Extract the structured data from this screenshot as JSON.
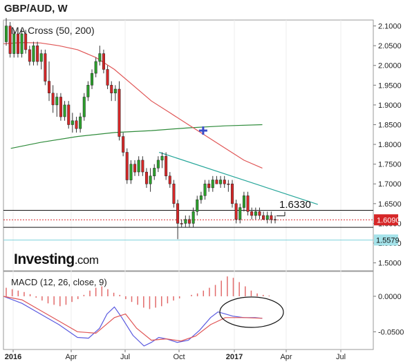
{
  "header": {
    "title": "GBP/AUD, W",
    "ma_label": "MA Cross (50, 200)",
    "macd_label": "MACD (12, 26, close, 9)",
    "logo_main": "Investing",
    "logo_suffix": ".com"
  },
  "chart_data": [
    {
      "type": "candlestick",
      "title": "GBP/AUD, W",
      "x_ticks": [
        "2016",
        "Apr",
        "Jul",
        "Oct",
        "2017",
        "Apr",
        "Jul"
      ],
      "y_ticks": [
        "2.1000",
        "2.0500",
        "2.0000",
        "1.9500",
        "1.9000",
        "1.8500",
        "1.8000",
        "1.7500",
        "1.7000",
        "1.6500",
        "1.6000",
        "1.5500",
        "1.5000"
      ],
      "ylim": [
        1.48,
        2.115
      ],
      "current_price": "1.6090",
      "support_level": "1.5579",
      "annotation": "1.6330",
      "horizontal_lines": [
        1.633,
        1.59,
        1.5579
      ],
      "candles": [
        {
          "o": 2.06,
          "h": 2.12,
          "l": 2.05,
          "c": 2.1,
          "bull": true
        },
        {
          "o": 2.1,
          "h": 2.11,
          "l": 2.02,
          "c": 2.03,
          "bull": false
        },
        {
          "o": 2.03,
          "h": 2.09,
          "l": 2.02,
          "c": 2.08,
          "bull": true
        },
        {
          "o": 2.08,
          "h": 2.09,
          "l": 2.02,
          "c": 2.03,
          "bull": false
        },
        {
          "o": 2.03,
          "h": 2.09,
          "l": 2.02,
          "c": 2.08,
          "bull": true
        },
        {
          "o": 2.08,
          "h": 2.09,
          "l": 2.03,
          "c": 2.04,
          "bull": false
        },
        {
          "o": 2.04,
          "h": 2.05,
          "l": 2.0,
          "c": 2.01,
          "bull": false
        },
        {
          "o": 2.01,
          "h": 2.06,
          "l": 2.0,
          "c": 2.05,
          "bull": true
        },
        {
          "o": 2.05,
          "h": 2.06,
          "l": 2.0,
          "c": 2.01,
          "bull": false
        },
        {
          "o": 2.01,
          "h": 2.04,
          "l": 1.99,
          "c": 2.03,
          "bull": true
        },
        {
          "o": 2.03,
          "h": 2.04,
          "l": 1.95,
          "c": 1.96,
          "bull": false
        },
        {
          "o": 1.96,
          "h": 2.01,
          "l": 1.91,
          "c": 1.93,
          "bull": false
        },
        {
          "o": 1.93,
          "h": 1.95,
          "l": 1.88,
          "c": 1.9,
          "bull": false
        },
        {
          "o": 1.9,
          "h": 1.93,
          "l": 1.87,
          "c": 1.92,
          "bull": true
        },
        {
          "o": 1.92,
          "h": 1.93,
          "l": 1.86,
          "c": 1.87,
          "bull": false
        },
        {
          "o": 1.87,
          "h": 1.91,
          "l": 1.86,
          "c": 1.9,
          "bull": true
        },
        {
          "o": 1.9,
          "h": 1.91,
          "l": 1.84,
          "c": 1.85,
          "bull": false
        },
        {
          "o": 1.85,
          "h": 1.88,
          "l": 1.83,
          "c": 1.86,
          "bull": true
        },
        {
          "o": 1.86,
          "h": 1.87,
          "l": 1.83,
          "c": 1.84,
          "bull": false
        },
        {
          "o": 1.84,
          "h": 1.88,
          "l": 1.83,
          "c": 1.87,
          "bull": true
        },
        {
          "o": 1.87,
          "h": 1.93,
          "l": 1.86,
          "c": 1.92,
          "bull": true
        },
        {
          "o": 1.92,
          "h": 1.96,
          "l": 1.91,
          "c": 1.95,
          "bull": true
        },
        {
          "o": 1.95,
          "h": 1.99,
          "l": 1.94,
          "c": 1.98,
          "bull": true
        },
        {
          "o": 1.98,
          "h": 2.02,
          "l": 1.97,
          "c": 2.01,
          "bull": true
        },
        {
          "o": 2.01,
          "h": 2.05,
          "l": 2.0,
          "c": 2.03,
          "bull": true
        },
        {
          "o": 2.03,
          "h": 2.04,
          "l": 1.98,
          "c": 1.99,
          "bull": false
        },
        {
          "o": 1.99,
          "h": 2.0,
          "l": 1.94,
          "c": 1.95,
          "bull": false
        },
        {
          "o": 1.95,
          "h": 1.96,
          "l": 1.91,
          "c": 1.93,
          "bull": false
        },
        {
          "o": 1.93,
          "h": 1.95,
          "l": 1.91,
          "c": 1.94,
          "bull": true
        },
        {
          "o": 1.94,
          "h": 1.96,
          "l": 1.81,
          "c": 1.82,
          "bull": false
        },
        {
          "o": 1.82,
          "h": 1.83,
          "l": 1.77,
          "c": 1.78,
          "bull": false
        },
        {
          "o": 1.78,
          "h": 1.79,
          "l": 1.7,
          "c": 1.71,
          "bull": false
        },
        {
          "o": 1.71,
          "h": 1.76,
          "l": 1.7,
          "c": 1.75,
          "bull": true
        },
        {
          "o": 1.75,
          "h": 1.76,
          "l": 1.72,
          "c": 1.73,
          "bull": false
        },
        {
          "o": 1.73,
          "h": 1.77,
          "l": 1.72,
          "c": 1.76,
          "bull": true
        },
        {
          "o": 1.76,
          "h": 1.77,
          "l": 1.72,
          "c": 1.73,
          "bull": false
        },
        {
          "o": 1.73,
          "h": 1.74,
          "l": 1.69,
          "c": 1.7,
          "bull": false
        },
        {
          "o": 1.7,
          "h": 1.74,
          "l": 1.68,
          "c": 1.72,
          "bull": true
        },
        {
          "o": 1.72,
          "h": 1.75,
          "l": 1.71,
          "c": 1.74,
          "bull": true
        },
        {
          "o": 1.74,
          "h": 1.77,
          "l": 1.73,
          "c": 1.76,
          "bull": true
        },
        {
          "o": 1.76,
          "h": 1.78,
          "l": 1.74,
          "c": 1.77,
          "bull": true
        },
        {
          "o": 1.77,
          "h": 1.78,
          "l": 1.71,
          "c": 1.72,
          "bull": false
        },
        {
          "o": 1.72,
          "h": 1.73,
          "l": 1.69,
          "c": 1.7,
          "bull": false
        },
        {
          "o": 1.7,
          "h": 1.71,
          "l": 1.64,
          "c": 1.65,
          "bull": false
        },
        {
          "o": 1.65,
          "h": 1.66,
          "l": 1.56,
          "c": 1.6,
          "bull": false
        },
        {
          "o": 1.6,
          "h": 1.61,
          "l": 1.59,
          "c": 1.6,
          "bull": false
        },
        {
          "o": 1.6,
          "h": 1.62,
          "l": 1.59,
          "c": 1.61,
          "bull": true
        },
        {
          "o": 1.61,
          "h": 1.62,
          "l": 1.59,
          "c": 1.6,
          "bull": false
        },
        {
          "o": 1.6,
          "h": 1.64,
          "l": 1.59,
          "c": 1.63,
          "bull": true
        },
        {
          "o": 1.63,
          "h": 1.67,
          "l": 1.62,
          "c": 1.66,
          "bull": true
        },
        {
          "o": 1.66,
          "h": 1.68,
          "l": 1.65,
          "c": 1.67,
          "bull": true
        },
        {
          "o": 1.67,
          "h": 1.71,
          "l": 1.66,
          "c": 1.7,
          "bull": true
        },
        {
          "o": 1.7,
          "h": 1.71,
          "l": 1.68,
          "c": 1.69,
          "bull": false
        },
        {
          "o": 1.69,
          "h": 1.72,
          "l": 1.68,
          "c": 1.71,
          "bull": true
        },
        {
          "o": 1.71,
          "h": 1.72,
          "l": 1.7,
          "c": 1.7,
          "bull": false
        },
        {
          "o": 1.7,
          "h": 1.72,
          "l": 1.69,
          "c": 1.71,
          "bull": true
        },
        {
          "o": 1.71,
          "h": 1.72,
          "l": 1.69,
          "c": 1.7,
          "bull": false
        },
        {
          "o": 1.7,
          "h": 1.71,
          "l": 1.68,
          "c": 1.7,
          "bull": false
        },
        {
          "o": 1.7,
          "h": 1.71,
          "l": 1.64,
          "c": 1.65,
          "bull": false
        },
        {
          "o": 1.65,
          "h": 1.66,
          "l": 1.6,
          "c": 1.61,
          "bull": false
        },
        {
          "o": 1.61,
          "h": 1.65,
          "l": 1.6,
          "c": 1.64,
          "bull": true
        },
        {
          "o": 1.64,
          "h": 1.68,
          "l": 1.63,
          "c": 1.67,
          "bull": true
        },
        {
          "o": 1.67,
          "h": 1.68,
          "l": 1.62,
          "c": 1.63,
          "bull": false
        },
        {
          "o": 1.63,
          "h": 1.64,
          "l": 1.61,
          "c": 1.62,
          "bull": false
        },
        {
          "o": 1.62,
          "h": 1.64,
          "l": 1.61,
          "c": 1.63,
          "bull": true
        },
        {
          "o": 1.63,
          "h": 1.64,
          "l": 1.61,
          "c": 1.62,
          "bull": false
        },
        {
          "o": 1.62,
          "h": 1.63,
          "l": 1.61,
          "c": 1.61,
          "bull": false
        },
        {
          "o": 1.61,
          "h": 1.63,
          "l": 1.6,
          "c": 1.62,
          "bull": true
        },
        {
          "o": 1.62,
          "h": 1.63,
          "l": 1.6,
          "c": 1.61,
          "bull": false
        },
        {
          "o": 1.61,
          "h": 1.62,
          "l": 1.6,
          "c": 1.609,
          "bull": false
        }
      ],
      "ma50": [
        [
          0.02,
          1.79
        ],
        [
          0.1,
          1.805
        ],
        [
          0.2,
          1.82
        ],
        [
          0.3,
          1.83
        ],
        [
          0.4,
          1.835
        ],
        [
          0.5,
          1.842
        ],
        [
          0.6,
          1.847
        ],
        [
          0.7,
          1.85
        ]
      ],
      "ma200": [
        [
          0.0,
          2.055
        ],
        [
          0.05,
          2.058
        ],
        [
          0.1,
          2.057
        ],
        [
          0.15,
          2.05
        ],
        [
          0.2,
          2.04
        ],
        [
          0.25,
          2.02
        ],
        [
          0.3,
          1.99
        ],
        [
          0.35,
          1.95
        ],
        [
          0.4,
          1.91
        ],
        [
          0.45,
          1.88
        ],
        [
          0.5,
          1.85
        ],
        [
          0.55,
          1.82
        ],
        [
          0.6,
          1.79
        ],
        [
          0.65,
          1.76
        ],
        [
          0.7,
          1.74
        ]
      ],
      "crossover_marker": [
        0.54,
        1.835
      ],
      "trendline": [
        [
          0.421,
          1.78
        ],
        [
          0.85,
          1.648
        ]
      ]
    },
    {
      "type": "line",
      "title": "MACD (12, 26, close, 9)",
      "y_ticks": [
        "0.0000",
        "-0.0500"
      ],
      "ylim": [
        -0.075,
        0.035
      ],
      "series": [
        {
          "name": "MACD",
          "values": [
            [
              0.0,
              0.0
            ],
            [
              0.05,
              -0.01
            ],
            [
              0.1,
              -0.025
            ],
            [
              0.15,
              -0.04
            ],
            [
              0.2,
              -0.058
            ],
            [
              0.23,
              -0.059
            ],
            [
              0.26,
              -0.045
            ],
            [
              0.28,
              -0.025
            ],
            [
              0.3,
              -0.015
            ],
            [
              0.32,
              -0.03
            ],
            [
              0.35,
              -0.055
            ],
            [
              0.38,
              -0.07
            ],
            [
              0.4,
              -0.065
            ],
            [
              0.42,
              -0.058
            ],
            [
              0.44,
              -0.06
            ],
            [
              0.47,
              -0.065
            ],
            [
              0.5,
              -0.062
            ],
            [
              0.53,
              -0.048
            ],
            [
              0.56,
              -0.03
            ],
            [
              0.58,
              -0.022
            ],
            [
              0.6,
              -0.025
            ],
            [
              0.62,
              -0.028
            ],
            [
              0.65,
              -0.03
            ],
            [
              0.68,
              -0.03
            ],
            [
              0.7,
              -0.031
            ]
          ]
        },
        {
          "name": "Signal",
          "values": [
            [
              0.0,
              0.0
            ],
            [
              0.05,
              -0.005
            ],
            [
              0.1,
              -0.02
            ],
            [
              0.15,
              -0.035
            ],
            [
              0.2,
              -0.05
            ],
            [
              0.25,
              -0.052
            ],
            [
              0.3,
              -0.03
            ],
            [
              0.33,
              -0.025
            ],
            [
              0.36,
              -0.045
            ],
            [
              0.4,
              -0.062
            ],
            [
              0.44,
              -0.06
            ],
            [
              0.48,
              -0.063
            ],
            [
              0.52,
              -0.056
            ],
            [
              0.56,
              -0.04
            ],
            [
              0.6,
              -0.03
            ],
            [
              0.65,
              -0.03
            ],
            [
              0.7,
              -0.031
            ]
          ]
        }
      ],
      "histogram": [
        0.012,
        0.01,
        0.008,
        0.006,
        0.003,
        -0.002,
        -0.006,
        -0.01,
        -0.012,
        -0.014,
        -0.012,
        -0.008,
        -0.004,
        0.002,
        0.008,
        0.012,
        0.014,
        0.01,
        0.005,
        0.002,
        -0.004,
        -0.008,
        -0.012,
        -0.016,
        -0.018,
        -0.016,
        -0.014,
        -0.01,
        -0.006,
        -0.003,
        0.0,
        0.002,
        0.004,
        0.008,
        0.012,
        0.016,
        0.022,
        0.028,
        0.026,
        0.02,
        0.014,
        0.008,
        0.004,
        0.002,
        0.001,
        0.0
      ]
    }
  ],
  "x_ticks": [
    "2016",
    "Apr",
    "Jul",
    "Oct",
    "2017",
    "Apr",
    "Jul"
  ],
  "colors": {
    "bull": "#2ca02c",
    "bear": "#d62728",
    "ma50": "#2e8b3a",
    "ma200": "#e05555",
    "macd": "#5a5ae0",
    "signal": "#e05555",
    "trend": "#26a69a",
    "price_badge": "#d62728",
    "support_badge": "#a5e3ea"
  }
}
